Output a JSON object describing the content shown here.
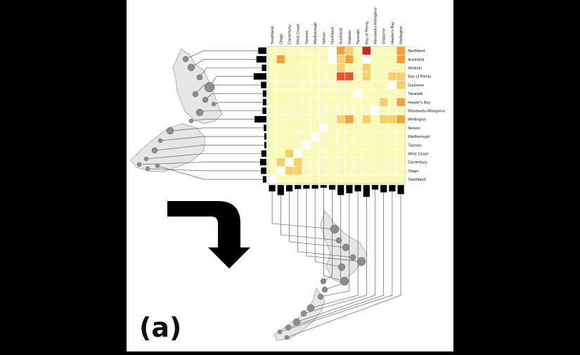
{
  "figure": {
    "panel_label": "(a)"
  },
  "regions_top": [
    "Southland",
    "Otago",
    "Canterbury",
    "West Coast",
    "Tasman",
    "Marlborough",
    "Nelson",
    "Northland",
    "Auckland",
    "Waikato",
    "Taranaki",
    "Bay of Plenty",
    "Manawatu-Wanganui",
    "Gisborne",
    "Hawke's Bay",
    "Wellington"
  ],
  "regions_right": [
    "Northland",
    "Auckland",
    "Waikato",
    "Bay of Plenty",
    "Gisborne",
    "Taranaki",
    "Hawke's Bay",
    "Manawatu-Wanganui",
    "Wellington",
    "Nelson",
    "Marlborough",
    "Tasman",
    "West Coast",
    "Canterbury",
    "Otago",
    "Southland"
  ],
  "colors": {
    "background": "#ffffff",
    "outer": "#000000",
    "cell_base": "#fafab8",
    "cell_low": "#f8cf6a",
    "cell_mid": "#f4a13c",
    "cell_high": "#e8552a",
    "cell_max": "#d42020",
    "cell_white": "#ffffff",
    "bar": "#000000",
    "map_fill": "#e6e6e6",
    "node": "#8c8c8c"
  },
  "matrix": {
    "levels": [
      [
        0,
        0,
        0,
        0,
        0,
        0,
        0,
        5,
        2,
        1,
        0,
        4,
        0,
        0,
        0,
        2
      ],
      [
        0,
        2,
        0,
        0,
        0,
        0,
        0,
        5,
        1,
        2,
        0,
        5,
        0,
        0,
        0,
        2
      ],
      [
        0,
        0,
        0,
        0,
        0,
        0,
        0,
        0,
        1,
        0,
        0,
        1,
        0,
        0,
        0,
        0
      ],
      [
        0,
        0,
        0,
        0,
        0,
        0,
        0,
        0,
        3,
        3,
        0,
        1,
        0,
        0,
        1,
        1
      ],
      [
        0,
        0,
        0,
        0,
        0,
        0,
        0,
        0,
        0,
        0,
        0,
        0,
        0,
        0,
        5,
        1
      ],
      [
        0,
        0,
        0,
        0,
        0,
        0,
        0,
        0,
        0,
        0,
        5,
        0,
        0,
        0,
        0,
        0
      ],
      [
        0,
        0,
        0,
        0,
        0,
        0,
        0,
        0,
        0,
        0,
        0,
        0,
        0,
        1,
        0,
        2
      ],
      [
        0,
        0,
        0,
        0,
        0,
        0,
        0,
        0,
        0,
        0,
        0,
        0,
        5,
        0,
        0,
        0
      ],
      [
        0,
        0,
        0,
        0,
        0,
        0,
        0,
        0,
        1,
        2,
        0,
        1,
        0,
        1,
        1,
        2
      ],
      [
        0,
        0,
        0,
        0,
        0,
        0,
        5,
        0,
        0,
        0,
        0,
        0,
        0,
        0,
        0,
        0
      ],
      [
        0,
        0,
        0,
        0,
        0,
        5,
        0,
        0,
        0,
        0,
        0,
        0,
        0,
        0,
        0,
        0
      ],
      [
        0,
        0,
        0,
        0,
        5,
        0,
        0,
        0,
        0,
        0,
        0,
        0,
        0,
        0,
        0,
        0
      ],
      [
        0,
        0,
        1,
        5,
        0,
        0,
        0,
        0,
        0,
        0,
        0,
        0,
        0,
        0,
        0,
        0
      ],
      [
        0,
        1,
        5,
        1,
        0,
        0,
        0,
        0,
        0,
        0,
        0,
        0,
        0,
        0,
        0,
        0
      ],
      [
        0,
        5,
        1,
        1,
        0,
        0,
        0,
        0,
        0,
        0,
        0,
        0,
        0,
        0,
        0,
        0
      ],
      [
        5,
        0,
        0,
        0,
        0,
        0,
        0,
        0,
        0,
        0,
        0,
        0,
        0,
        0,
        0,
        0
      ]
    ],
    "left_bar_totals": [
      0.45,
      0.55,
      0.25,
      0.7,
      0.3,
      0.2,
      0.2,
      0.22,
      0.65,
      0.15,
      0.12,
      0.12,
      0.28,
      0.35,
      0.3,
      0.2
    ],
    "bottom_bar_totals": [
      0.35,
      0.55,
      0.35,
      0.22,
      0.2,
      0.2,
      0.15,
      0.25,
      0.55,
      0.45,
      0.35,
      0.65,
      0.25,
      0.4,
      0.35,
      0.5
    ]
  }
}
